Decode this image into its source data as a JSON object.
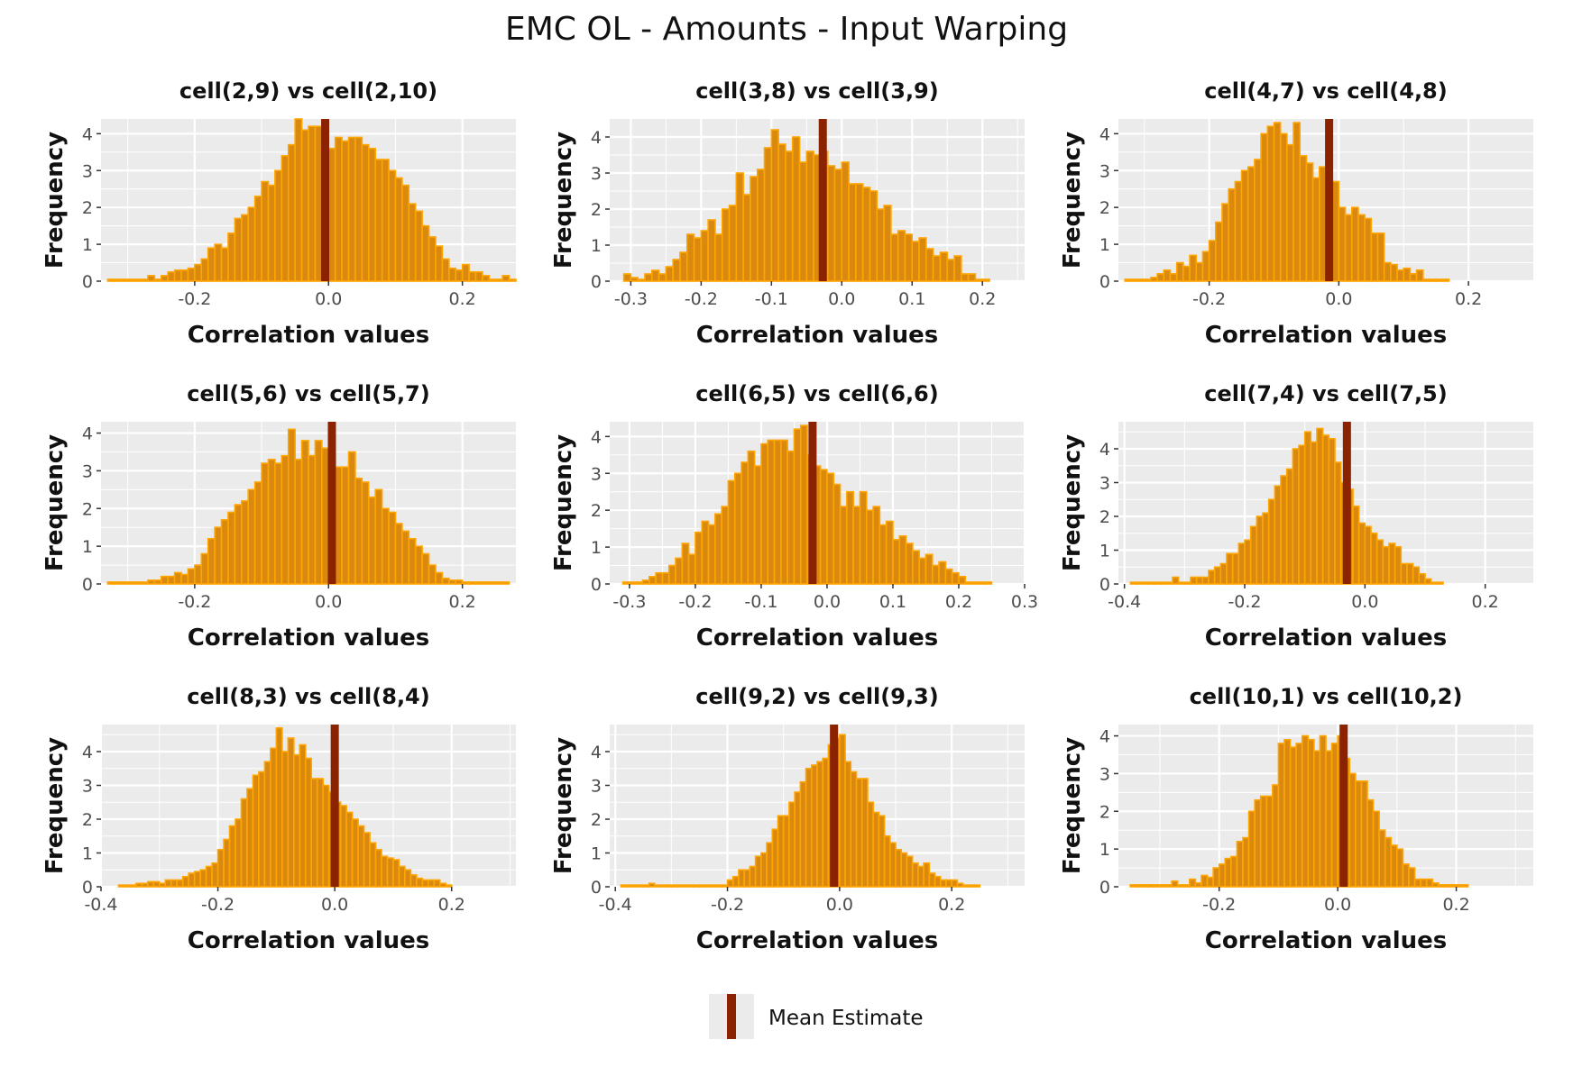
{
  "title": "EMC OL - Amounts - Input Warping",
  "legend": {
    "label": "Mean Estimate",
    "placement": "bottom-center"
  },
  "colors": {
    "panel_bg": "#ebebeb",
    "grid": "#ffffff",
    "bar_fill": "#d9890f",
    "bar_outline": "#ffa500",
    "mean_line": "#8b2300",
    "axis_text": "#4d4d4d"
  },
  "chart_data": [
    {
      "type": "bar",
      "title": "cell(2,9) vs cell(2,10)",
      "xlabel": "Correlation values",
      "ylabel": "Frequency",
      "xlim": [
        -0.34,
        0.28
      ],
      "ylim": [
        0,
        4.4
      ],
      "xticks": [
        -0.2,
        0.0,
        0.2
      ],
      "yticks": [
        0,
        1,
        2,
        3,
        4
      ],
      "mean": -0.005,
      "bin_start": -0.33,
      "bin_width": 0.01,
      "values": [
        0.05,
        0.05,
        0.05,
        0.05,
        0.05,
        0.05,
        0.15,
        0.05,
        0.15,
        0.25,
        0.3,
        0.3,
        0.35,
        0.45,
        0.6,
        0.9,
        1.0,
        0.9,
        1.3,
        1.7,
        1.8,
        2.0,
        2.3,
        2.7,
        2.6,
        3.0,
        3.4,
        3.7,
        4.4,
        4.1,
        4.2,
        4.2,
        3.2,
        3.6,
        3.9,
        3.8,
        3.9,
        3.9,
        3.7,
        3.6,
        3.3,
        3.3,
        3.0,
        2.8,
        2.6,
        2.1,
        1.9,
        1.5,
        1.2,
        0.95,
        0.6,
        0.35,
        0.3,
        0.45,
        0.25,
        0.25,
        0.15,
        0.05,
        0.05,
        0.15,
        0.05
      ]
    },
    {
      "type": "bar",
      "title": "cell(3,8) vs cell(3,9)",
      "xlabel": "Correlation values",
      "ylabel": "Frequency",
      "xlim": [
        -0.33,
        0.26
      ],
      "ylim": [
        0,
        4.5
      ],
      "xticks": [
        -0.3,
        -0.2,
        -0.1,
        0.0,
        0.1,
        0.2
      ],
      "yticks": [
        0,
        1,
        2,
        3,
        4
      ],
      "mean": -0.027,
      "bin_start": -0.31,
      "bin_width": 0.01,
      "values": [
        0.2,
        0.1,
        0.05,
        0.2,
        0.3,
        0.2,
        0.4,
        0.6,
        0.8,
        1.3,
        1.2,
        1.4,
        1.7,
        1.3,
        2.0,
        2.1,
        3.0,
        2.4,
        2.9,
        3.1,
        3.7,
        4.2,
        3.8,
        3.6,
        4.0,
        3.3,
        3.6,
        3.5,
        3.6,
        3.2,
        3.1,
        3.3,
        2.7,
        2.7,
        2.6,
        2.5,
        2.0,
        2.1,
        1.3,
        1.4,
        1.3,
        1.1,
        1.2,
        0.9,
        0.7,
        0.8,
        0.6,
        0.7,
        0.2,
        0.2,
        0.05,
        0.05
      ]
    },
    {
      "type": "bar",
      "title": "cell(4,7) vs cell(4,8)",
      "xlabel": "Correlation values",
      "ylabel": "Frequency",
      "xlim": [
        -0.34,
        0.3
      ],
      "ylim": [
        0,
        4.4
      ],
      "xticks": [
        -0.2,
        0.0,
        0.2
      ],
      "yticks": [
        0,
        1,
        2,
        3,
        4
      ],
      "mean": -0.015,
      "bin_start": -0.33,
      "bin_width": 0.01,
      "values": [
        0.05,
        0.05,
        0.05,
        0.05,
        0.1,
        0.2,
        0.3,
        0.2,
        0.5,
        0.4,
        0.7,
        0.5,
        0.8,
        1.1,
        1.6,
        2.1,
        2.5,
        2.7,
        3.0,
        3.1,
        3.3,
        4.0,
        4.2,
        4.3,
        4.0,
        3.7,
        4.3,
        3.4,
        3.2,
        2.8,
        3.1,
        3.1,
        2.7,
        2.0,
        1.8,
        2.0,
        1.8,
        1.7,
        1.3,
        1.3,
        0.5,
        0.45,
        0.3,
        0.35,
        0.2,
        0.3,
        0.05,
        0.05,
        0.05,
        0.05
      ]
    },
    {
      "type": "bar",
      "title": "cell(5,6) vs cell(5,7)",
      "xlabel": "Correlation values",
      "ylabel": "Frequency",
      "xlim": [
        -0.34,
        0.28
      ],
      "ylim": [
        0,
        4.3
      ],
      "xticks": [
        -0.2,
        0.0,
        0.2
      ],
      "yticks": [
        0,
        1,
        2,
        3,
        4
      ],
      "mean": 0.005,
      "bin_start": -0.33,
      "bin_width": 0.01,
      "values": [
        0.05,
        0.05,
        0.05,
        0.05,
        0.05,
        0.05,
        0.1,
        0.1,
        0.2,
        0.2,
        0.3,
        0.25,
        0.4,
        0.5,
        0.8,
        1.2,
        1.5,
        1.7,
        1.9,
        2.1,
        2.2,
        2.5,
        2.7,
        3.2,
        3.3,
        3.2,
        3.4,
        4.1,
        3.3,
        3.8,
        3.4,
        3.8,
        3.6,
        3.5,
        3.1,
        3.1,
        3.5,
        2.8,
        2.7,
        2.3,
        2.5,
        2.0,
        1.9,
        1.6,
        1.4,
        1.2,
        1.0,
        0.8,
        0.5,
        0.3,
        0.15,
        0.1,
        0.1,
        0.05,
        0.05,
        0.05,
        0.05,
        0.05,
        0.05,
        0.05
      ]
    },
    {
      "type": "bar",
      "title": "cell(6,5) vs cell(6,6)",
      "xlabel": "Correlation values",
      "ylabel": "Frequency",
      "xlim": [
        -0.33,
        0.3
      ],
      "ylim": [
        0,
        4.4
      ],
      "xticks": [
        -0.3,
        -0.2,
        -0.1,
        0.0,
        0.1,
        0.2,
        0.3
      ],
      "yticks": [
        0,
        1,
        2,
        3,
        4
      ],
      "mean": -0.022,
      "bin_start": -0.31,
      "bin_width": 0.01,
      "values": [
        0.05,
        0.05,
        0.05,
        0.1,
        0.2,
        0.3,
        0.3,
        0.5,
        0.7,
        1.1,
        0.8,
        1.4,
        1.7,
        1.6,
        1.9,
        2.1,
        2.8,
        3.0,
        3.3,
        3.6,
        3.2,
        3.8,
        3.9,
        3.9,
        3.9,
        3.6,
        4.2,
        4.3,
        3.5,
        3.2,
        3.1,
        3.0,
        2.7,
        2.1,
        2.5,
        2.1,
        2.5,
        2.0,
        2.1,
        1.6,
        1.7,
        1.2,
        1.3,
        1.1,
        0.9,
        0.7,
        0.8,
        0.5,
        0.6,
        0.4,
        0.3,
        0.2,
        0.05,
        0.05,
        0.05,
        0.05
      ]
    },
    {
      "type": "bar",
      "title": "cell(7,4) vs cell(7,5)",
      "xlabel": "Correlation values",
      "ylabel": "Frequency",
      "xlim": [
        -0.41,
        0.28
      ],
      "ylim": [
        0,
        4.8
      ],
      "xticks": [
        -0.4,
        -0.2,
        0.0,
        0.2
      ],
      "yticks": [
        0,
        1,
        2,
        3,
        4
      ],
      "mean": -0.03,
      "bin_start": -0.39,
      "bin_width": 0.01,
      "values": [
        0.05,
        0.05,
        0.05,
        0.05,
        0.05,
        0.05,
        0.05,
        0.2,
        0.05,
        0.05,
        0.2,
        0.2,
        0.2,
        0.4,
        0.5,
        0.6,
        0.9,
        0.9,
        1.2,
        1.3,
        1.7,
        2.0,
        2.1,
        2.5,
        2.9,
        3.2,
        3.4,
        4.0,
        4.1,
        4.5,
        4.2,
        4.6,
        4.4,
        4.3,
        3.6,
        3.0,
        2.8,
        2.3,
        1.8,
        1.7,
        1.5,
        1.3,
        1.1,
        1.2,
        1.1,
        0.6,
        0.6,
        0.5,
        0.3,
        0.15,
        0.05,
        0.05
      ]
    },
    {
      "type": "bar",
      "title": "cell(8,3) vs cell(8,4)",
      "xlabel": "Correlation values",
      "ylabel": "Frequency",
      "xlim": [
        -0.4,
        0.31
      ],
      "ylim": [
        0,
        4.8
      ],
      "xticks": [
        -0.4,
        -0.2,
        0.0,
        0.2
      ],
      "yticks": [
        0,
        1,
        2,
        3,
        4
      ],
      "mean": 0.0,
      "bin_start": -0.37,
      "bin_width": 0.01,
      "values": [
        0.05,
        0.05,
        0.05,
        0.1,
        0.1,
        0.15,
        0.15,
        0.1,
        0.2,
        0.2,
        0.2,
        0.3,
        0.4,
        0.45,
        0.5,
        0.6,
        0.7,
        1.1,
        1.4,
        1.8,
        2.0,
        2.6,
        2.9,
        3.3,
        3.4,
        3.7,
        4.1,
        4.7,
        4.0,
        4.4,
        3.9,
        4.2,
        3.8,
        3.2,
        3.2,
        3.0,
        2.8,
        2.5,
        2.4,
        2.2,
        2.0,
        1.8,
        1.6,
        1.3,
        1.1,
        0.9,
        0.85,
        0.8,
        0.6,
        0.5,
        0.35,
        0.25,
        0.2,
        0.2,
        0.2,
        0.1,
        0.05
      ]
    },
    {
      "type": "bar",
      "title": "cell(9,2) vs cell(9,3)",
      "xlabel": "Correlation values",
      "ylabel": "Frequency",
      "xlim": [
        -0.41,
        0.33
      ],
      "ylim": [
        0,
        4.8
      ],
      "xticks": [
        -0.4,
        -0.2,
        0.0,
        0.2
      ],
      "yticks": [
        0,
        1,
        2,
        3,
        4
      ],
      "mean": -0.01,
      "bin_start": -0.39,
      "bin_width": 0.01,
      "values": [
        0.05,
        0.05,
        0.05,
        0.05,
        0.05,
        0.1,
        0.05,
        0.05,
        0.05,
        0.05,
        0.05,
        0.05,
        0.05,
        0.05,
        0.05,
        0.05,
        0.05,
        0.05,
        0.05,
        0.2,
        0.3,
        0.5,
        0.5,
        0.6,
        0.9,
        1.0,
        1.3,
        1.7,
        2.1,
        2.1,
        2.5,
        2.8,
        3.1,
        3.5,
        3.6,
        3.7,
        3.8,
        4.2,
        4.4,
        4.5,
        3.7,
        3.4,
        3.2,
        3.2,
        2.5,
        2.2,
        2.1,
        1.5,
        1.3,
        1.1,
        1.0,
        0.9,
        0.7,
        0.6,
        0.7,
        0.4,
        0.3,
        0.2,
        0.2,
        0.2,
        0.1,
        0.05,
        0.05,
        0.05
      ]
    },
    {
      "type": "bar",
      "title": "cell(10,1) vs cell(10,2)",
      "xlabel": "Correlation values",
      "ylabel": "Frequency",
      "xlim": [
        -0.37,
        0.33
      ],
      "ylim": [
        0,
        4.3
      ],
      "xticks": [
        -0.2,
        0.0,
        0.2
      ],
      "yticks": [
        0,
        1,
        2,
        3,
        4
      ],
      "mean": 0.01,
      "bin_start": -0.35,
      "bin_width": 0.01,
      "values": [
        0.05,
        0.05,
        0.05,
        0.05,
        0.05,
        0.05,
        0.05,
        0.15,
        0.05,
        0.05,
        0.2,
        0.1,
        0.3,
        0.25,
        0.5,
        0.6,
        0.75,
        0.8,
        1.2,
        1.3,
        2.0,
        2.3,
        2.4,
        2.4,
        2.7,
        3.8,
        3.9,
        3.7,
        3.8,
        4.0,
        3.9,
        3.6,
        4.0,
        3.6,
        3.8,
        4.0,
        3.4,
        3.0,
        2.8,
        2.8,
        2.3,
        2.0,
        1.5,
        1.3,
        1.1,
        1.0,
        0.6,
        0.5,
        0.2,
        0.2,
        0.2,
        0.1,
        0.05,
        0.05,
        0.05,
        0.05,
        0.05
      ]
    }
  ]
}
